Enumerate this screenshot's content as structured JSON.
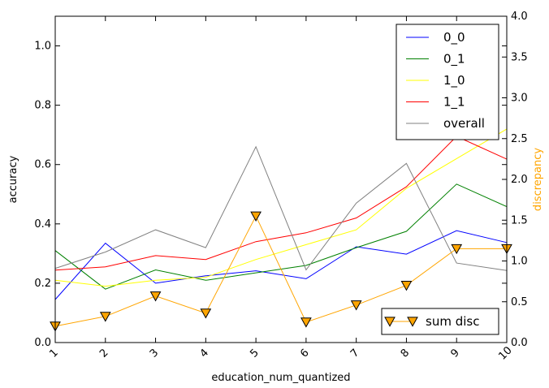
{
  "chart_data": {
    "type": "line",
    "x": [
      1,
      2,
      3,
      4,
      5,
      6,
      7,
      8,
      9,
      10
    ],
    "x_tick_labels": [
      "1",
      "2",
      "3",
      "4",
      "5",
      "6",
      "7",
      "8",
      "9",
      "10"
    ],
    "xlabel": "education_num_quantized",
    "ylabel": "accuracy",
    "ylabel_right": "discrepancy",
    "xlim": [
      1,
      10
    ],
    "ylim": [
      0.0,
      1.1
    ],
    "ylim_right": [
      0.0,
      4.0
    ],
    "y_ticks": [
      "0.0",
      "0.2",
      "0.4",
      "0.6",
      "0.8",
      "1.0"
    ],
    "y_ticks_right": [
      "0.0",
      "0.5",
      "1.0",
      "1.5",
      "2.0",
      "2.5",
      "3.0",
      "3.5",
      "4.0"
    ],
    "grid": false,
    "legend_placement": "top-right",
    "legend_right_placement": "bottom-right",
    "series": [
      {
        "name": "0_0",
        "color": "#0000ff",
        "axis": "left",
        "values": [
          0.145,
          0.335,
          0.2,
          0.225,
          0.242,
          0.215,
          0.323,
          0.298,
          0.377,
          0.337
        ]
      },
      {
        "name": "0_1",
        "color": "#008000",
        "axis": "left",
        "values": [
          0.31,
          0.18,
          0.245,
          0.21,
          0.235,
          0.26,
          0.32,
          0.375,
          0.534,
          0.458
        ]
      },
      {
        "name": "1_0",
        "color": "#ffff00",
        "axis": "left",
        "values": [
          0.21,
          0.19,
          0.21,
          0.22,
          0.28,
          0.33,
          0.38,
          0.52,
          0.62,
          0.72
        ]
      },
      {
        "name": "1_1",
        "color": "#ff0000",
        "axis": "left",
        "values": [
          0.244,
          0.255,
          0.293,
          0.28,
          0.34,
          0.37,
          0.42,
          0.525,
          0.695,
          0.618
        ]
      },
      {
        "name": "overall",
        "color": "#808080",
        "axis": "left",
        "values": [
          0.25,
          0.305,
          0.38,
          0.32,
          0.66,
          0.245,
          0.47,
          0.604,
          0.268,
          0.243
        ]
      }
    ],
    "right_series": [
      {
        "name": "sum disc",
        "color": "#ffa500",
        "marker": "triangle-down",
        "axis": "right",
        "values": [
          0.2,
          0.32,
          0.57,
          0.36,
          1.55,
          0.25,
          0.46,
          0.7,
          1.15,
          1.15
        ]
      }
    ]
  }
}
